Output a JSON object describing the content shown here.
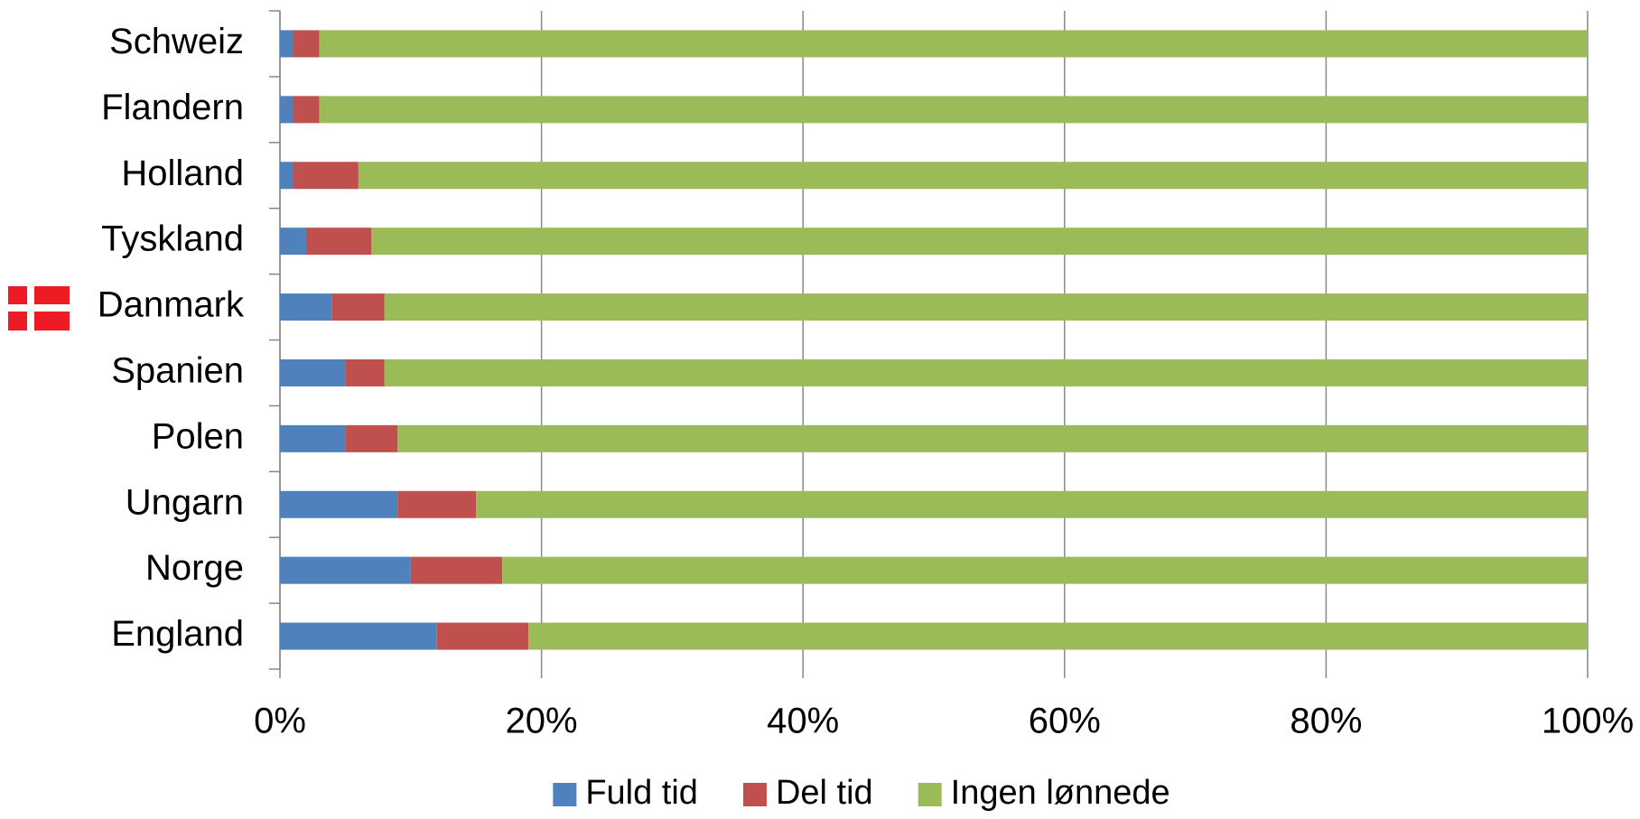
{
  "chart_data": {
    "type": "stacked_barh",
    "categories": [
      "Schweiz",
      "Flandern",
      "Holland",
      "Tyskland",
      "Danmark",
      "Spanien",
      "Polen",
      "Ungarn",
      "Norge",
      "England"
    ],
    "series": [
      {
        "name": "Fuld tid",
        "color": "#4f81bd",
        "values": [
          1,
          1,
          1,
          2,
          4,
          5,
          5,
          9,
          10,
          12
        ]
      },
      {
        "name": "Del tid",
        "color": "#c0504d",
        "values": [
          2,
          2,
          5,
          5,
          4,
          3,
          4,
          6,
          7,
          7
        ]
      },
      {
        "name": "Ingen lønnede",
        "color": "#9bbb59",
        "values": [
          97,
          97,
          94,
          93,
          92,
          92,
          91,
          85,
          83,
          81
        ]
      }
    ],
    "xlim": [
      0,
      100
    ],
    "xticks": [
      {
        "value": 0,
        "label": "0%"
      },
      {
        "value": 20,
        "label": "20%"
      },
      {
        "value": 40,
        "label": "40%"
      },
      {
        "value": 60,
        "label": "60%"
      },
      {
        "value": 80,
        "label": "80%"
      },
      {
        "value": 100,
        "label": "100%"
      }
    ],
    "grid": true,
    "legend": "bottom"
  }
}
